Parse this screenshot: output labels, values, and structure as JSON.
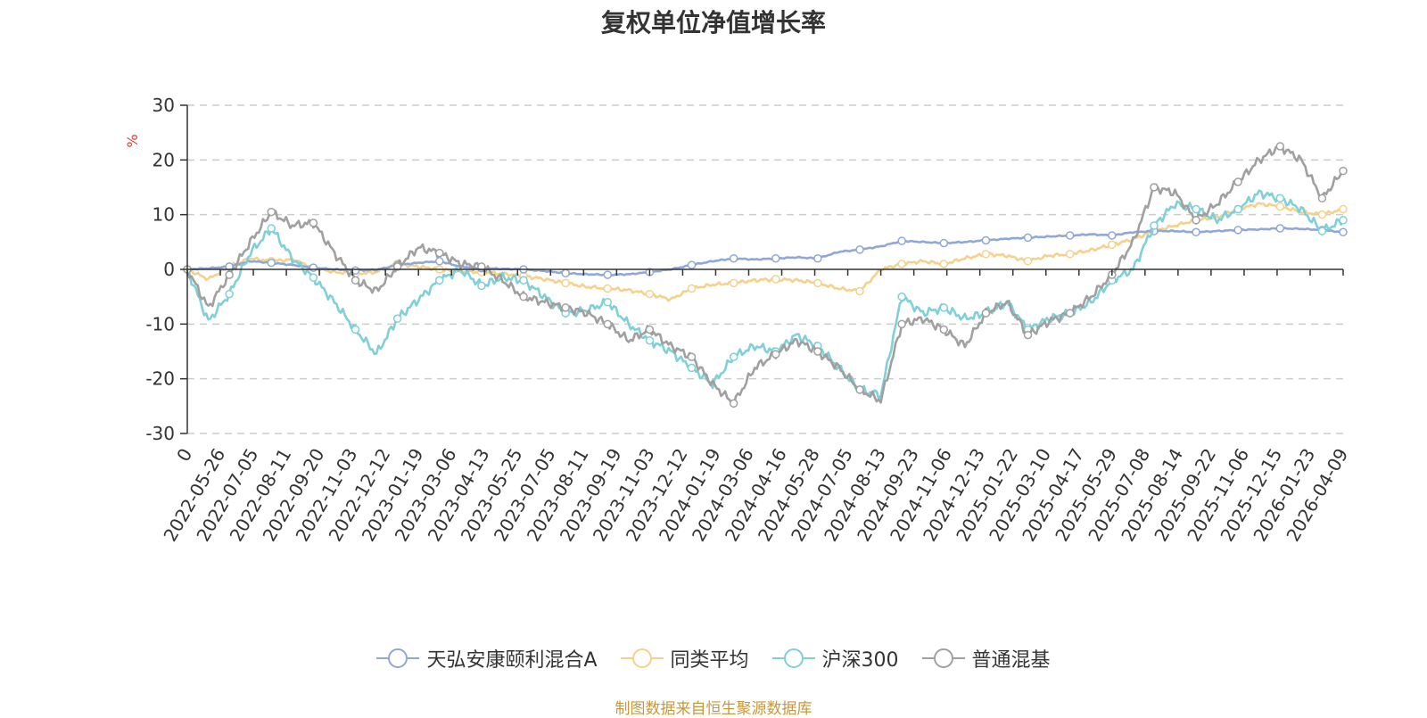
{
  "chart_data": {
    "type": "line",
    "title": "复权单位净值增长率",
    "ylabel": "%",
    "ylim": [
      -30,
      30
    ],
    "yticks": [
      30,
      20,
      10,
      0,
      -10,
      -20,
      -30
    ],
    "ytick_labels": [
      "30",
      "20",
      "10",
      "0",
      "-10",
      "-20",
      "-30"
    ],
    "xtick_labels": [
      "0",
      "2022-05-26",
      "2022-07-05",
      "2022-08-11",
      "2022-09-20",
      "2022-11-03",
      "2022-12-12",
      "2023-01-19",
      "2023-03-06",
      "2023-04-13",
      "2023-05-25",
      "2023-07-05",
      "2023-08-11",
      "2023-09-19",
      "2023-11-03",
      "2023-12-12",
      "2024-01-19",
      "2024-03-06",
      "2024-04-16",
      "2024-05-28",
      "2024-07-05",
      "2024-08-13",
      "2024-09-23",
      "2024-11-06",
      "2024-12-13",
      "2025-01-22",
      "2025-03-10",
      "2025-04-17",
      "2025-05-29",
      "2025-07-08",
      "2025-08-14",
      "2025-09-22",
      "2025-11-06",
      "2025-12-15",
      "2026-01-23",
      "2026-04-09"
    ],
    "grid": true,
    "legend_position": "bottom-center",
    "series": [
      {
        "name": "天弘安康颐利混合A",
        "color": "#8fa8d8",
        "values": [
          0,
          0.2,
          0.5,
          1.5,
          1.2,
          0.8,
          0.3,
          0.0,
          -0.2,
          -0.1,
          0.8,
          1.2,
          1.5,
          0.5,
          0.2,
          0.1,
          0.0,
          -0.3,
          -0.7,
          -0.9,
          -1.0,
          -0.9,
          -0.5,
          0.0,
          0.8,
          1.5,
          2.0,
          1.8,
          2.0,
          2.2,
          2.0,
          3.2,
          3.6,
          4.2,
          5.2,
          5.0,
          4.8,
          5.0,
          5.3,
          5.6,
          5.8,
          6.0,
          6.2,
          6.4,
          6.2,
          6.8,
          7.0,
          7.0,
          6.8,
          7.0,
          7.2,
          7.3,
          7.5,
          7.4,
          7.2,
          6.8
        ]
      },
      {
        "name": "同类平均",
        "color": "#f5d28c",
        "values": [
          0,
          -1.8,
          0.5,
          2.0,
          1.5,
          1.8,
          0.3,
          -0.5,
          -0.8,
          -0.5,
          1.0,
          0.5,
          0.0,
          -0.5,
          -0.5,
          -0.8,
          -1.2,
          -1.8,
          -2.5,
          -3.2,
          -3.5,
          -3.8,
          -4.5,
          -5.5,
          -3.5,
          -2.8,
          -2.5,
          -2.0,
          -1.8,
          -2.0,
          -2.5,
          -3.5,
          -4.0,
          0.0,
          1.0,
          1.5,
          1.0,
          2.0,
          2.8,
          2.5,
          1.5,
          2.5,
          2.8,
          3.5,
          4.5,
          5.5,
          7.0,
          8.0,
          9.0,
          9.5,
          11.0,
          12.0,
          11.5,
          10.5,
          10.0,
          11.0
        ]
      },
      {
        "name": "沪深300",
        "color": "#7fd0d8",
        "values": [
          0,
          -9.5,
          -4.5,
          3.0,
          7.5,
          2.0,
          -1.5,
          -6.0,
          -11.0,
          -15.5,
          -9.0,
          -5.5,
          -2.0,
          0.0,
          -3.0,
          -1.5,
          -2.0,
          -5.0,
          -8.0,
          -7.5,
          -6.0,
          -10.0,
          -13.0,
          -15.0,
          -18.0,
          -21.0,
          -16.0,
          -14.0,
          -15.0,
          -12.0,
          -14.0,
          -18.0,
          -22.0,
          -23.0,
          -5.0,
          -8.0,
          -7.0,
          -9.0,
          -8.0,
          -6.0,
          -11.0,
          -9.0,
          -8.0,
          -6.0,
          -2.0,
          0.0,
          8.0,
          12.0,
          11.0,
          9.0,
          11.0,
          14.0,
          13.0,
          11.0,
          7.0,
          9.0
        ]
      },
      {
        "name": "普通混基",
        "color": "#a0a0a0",
        "values": [
          0,
          -7.0,
          -1.0,
          5.0,
          10.5,
          8.0,
          8.5,
          3.0,
          -2.0,
          -4.0,
          0.5,
          4.0,
          3.0,
          1.0,
          0.5,
          -2.0,
          -5.0,
          -6.0,
          -7.0,
          -8.0,
          -10.0,
          -13.0,
          -11.0,
          -14.0,
          -16.0,
          -21.0,
          -24.5,
          -18.0,
          -15.5,
          -13.0,
          -15.0,
          -18.0,
          -22.0,
          -24.0,
          -10.0,
          -9.0,
          -11.0,
          -14.0,
          -8.0,
          -6.0,
          -12.0,
          -9.5,
          -8.0,
          -5.0,
          -1.0,
          5.0,
          15.0,
          14.0,
          9.0,
          12.0,
          16.0,
          20.0,
          22.5,
          20.0,
          13.0,
          18.0
        ]
      }
    ]
  },
  "source_text": "制图数据来自恒生聚源数据库",
  "colors": {
    "source": "#c8973a",
    "unit": "#e53935",
    "axis": "#333333",
    "grid": "#cccccc"
  }
}
